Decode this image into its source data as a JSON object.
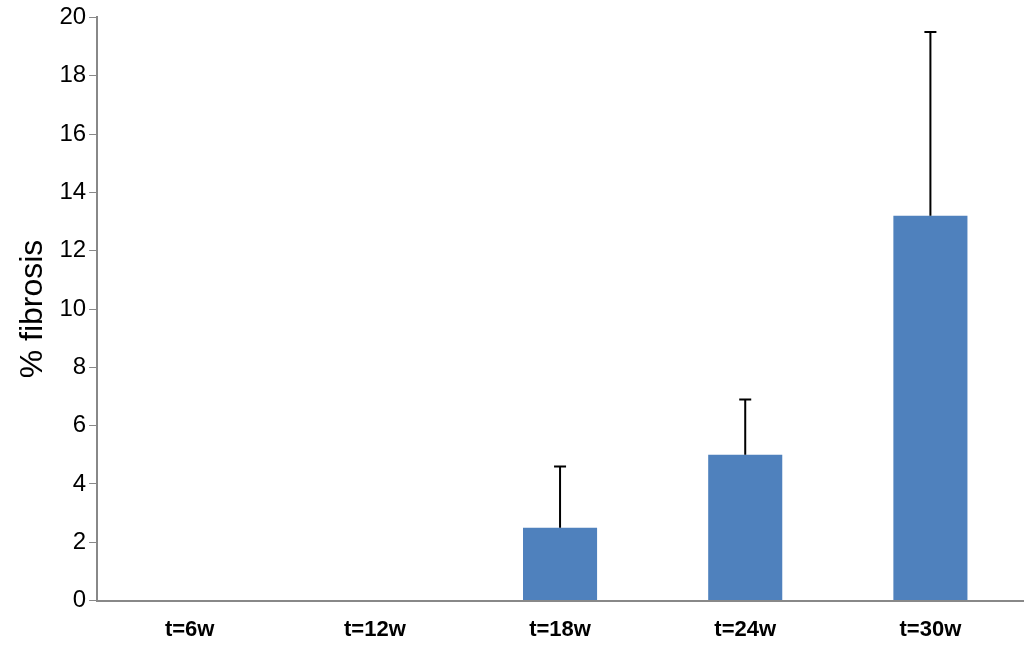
{
  "chart_data": {
    "type": "bar",
    "ylabel": "% fibrosis",
    "categories": [
      "t=6w",
      "t=12w",
      "t=18w",
      "t=24w",
      "t=30w"
    ],
    "values": [
      0,
      0,
      2.5,
      5.0,
      13.2
    ],
    "errors": [
      null,
      null,
      [
        2.5,
        4.6
      ],
      [
        5.0,
        6.9
      ],
      [
        13.2,
        19.5
      ]
    ],
    "color": "#4f81bd",
    "ylim": [
      0,
      20
    ],
    "yticks": [
      0,
      2,
      4,
      6,
      8,
      10,
      12,
      14,
      16,
      18,
      20
    ],
    "grid": false,
    "legend": false
  }
}
